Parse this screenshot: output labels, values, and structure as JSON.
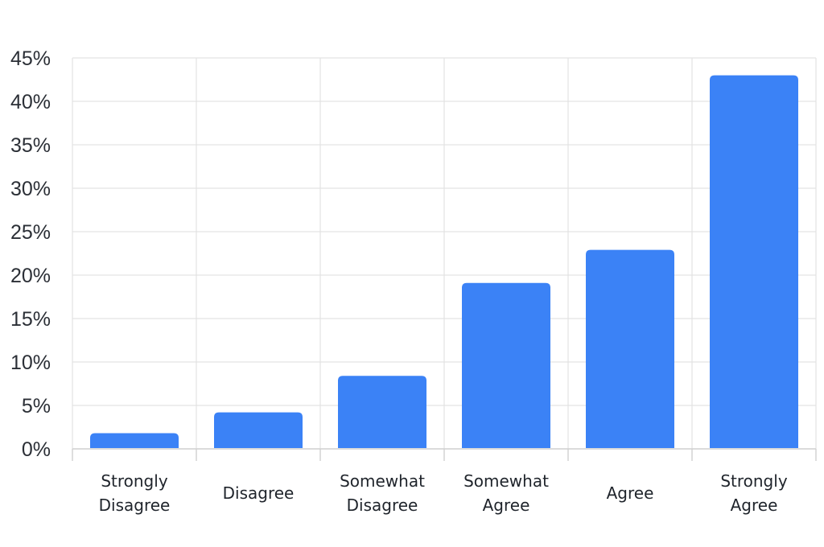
{
  "chart_data": {
    "type": "bar",
    "title": "",
    "xlabel": "",
    "ylabel": "",
    "categories": [
      [
        "Strongly",
        "Disagree"
      ],
      [
        "Disagree"
      ],
      [
        "Somewhat",
        "Disagree"
      ],
      [
        "Somewhat",
        "Agree"
      ],
      [
        "Agree"
      ],
      [
        "Strongly",
        "Agree"
      ]
    ],
    "values": [
      1.8,
      4.2,
      8.4,
      19.1,
      22.9,
      43.0
    ],
    "ylim": [
      0,
      45
    ],
    "y_ticks": [
      0,
      5,
      10,
      15,
      20,
      25,
      30,
      35,
      40,
      45
    ],
    "y_tick_labels": [
      "0%",
      "5%",
      "10%",
      "15%",
      "20%",
      "25%",
      "30%",
      "35%",
      "40%",
      "45%"
    ],
    "grid": true,
    "legend": "none",
    "colors": {
      "bar": "#3b82f6",
      "grid": "#e3e3e3",
      "axis": "#cfcfcf",
      "text": "#2b2f36"
    }
  }
}
